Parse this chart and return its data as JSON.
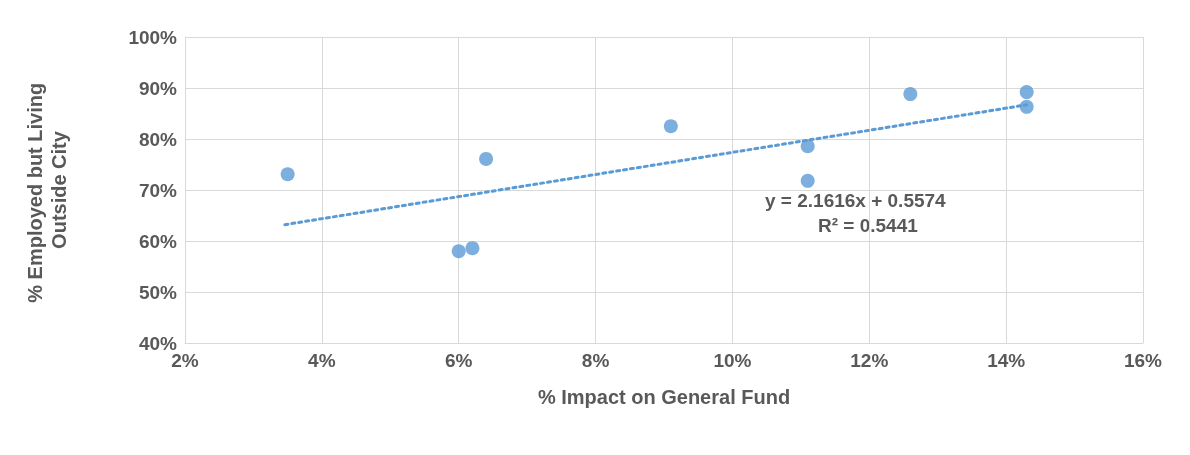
{
  "chart_data": {
    "type": "scatter",
    "xlabel": "% Impact on General Fund",
    "ylabel": "% Employed but Living Outside City",
    "xlim": [
      2,
      16
    ],
    "xticks": [
      {
        "value": 2,
        "label": "2%"
      },
      {
        "value": 4,
        "label": "4%"
      },
      {
        "value": 6,
        "label": "6%"
      },
      {
        "value": 8,
        "label": "8%"
      },
      {
        "value": 10,
        "label": "10%"
      },
      {
        "value": 12,
        "label": "12%"
      },
      {
        "value": 14,
        "label": "14%"
      },
      {
        "value": 16,
        "label": "16%"
      }
    ],
    "ylim": [
      40,
      100
    ],
    "yticks": [
      {
        "value": 40,
        "label": "40%"
      },
      {
        "value": 50,
        "label": "50%"
      },
      {
        "value": 60,
        "label": "60%"
      },
      {
        "value": 70,
        "label": "70%"
      },
      {
        "value": 80,
        "label": "80%"
      },
      {
        "value": 90,
        "label": "90%"
      },
      {
        "value": 100,
        "label": "100%"
      }
    ],
    "grid": true,
    "marker": "circle",
    "series": [
      {
        "color": "#5b9bd5",
        "x": [
          3.5,
          6.0,
          6.2,
          6.4,
          9.1,
          11.1,
          11.1,
          12.6,
          14.3,
          14.3
        ],
        "values": [
          73.1,
          58.0,
          58.6,
          76.1,
          82.5,
          78.6,
          71.8,
          88.8,
          89.2,
          86.3
        ]
      },
      {
        "type": "line",
        "color": "#5b9bd5",
        "marker": "none",
        "line_style": "dotted",
        "x": [
          3.46,
          14.3
        ],
        "values": [
          63.2,
          86.7
        ]
      }
    ],
    "annotations": [
      "y = 2.1616x + 0.5574",
      "R² = 0.5441"
    ]
  }
}
